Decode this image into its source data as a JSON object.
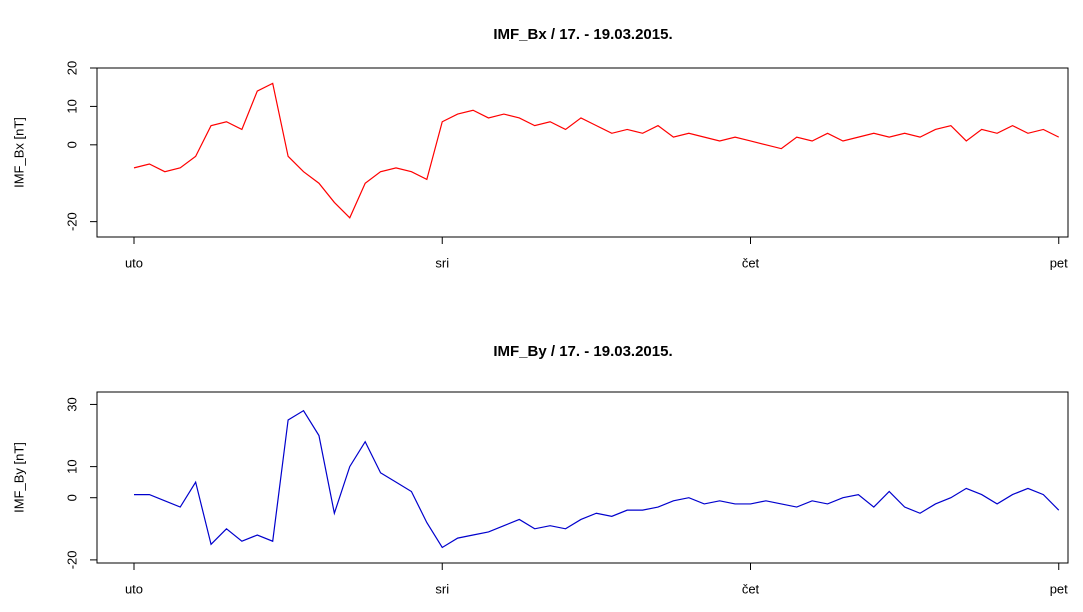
{
  "chart_data": [
    {
      "type": "line",
      "title": "IMF_Bx / 17. - 19.03.2015.",
      "y_label": "IMF_Bx [nT]",
      "x": [
        0,
        0.05,
        0.1,
        0.15,
        0.2,
        0.25,
        0.3,
        0.35,
        0.4,
        0.45,
        0.5,
        0.55,
        0.6,
        0.65,
        0.7,
        0.75,
        0.8,
        0.85,
        0.9,
        0.95,
        1,
        1.05,
        1.1,
        1.15,
        1.2,
        1.25,
        1.3,
        1.35,
        1.4,
        1.45,
        1.5,
        1.55,
        1.6,
        1.65,
        1.7,
        1.75,
        1.8,
        1.85,
        1.9,
        1.95,
        2,
        2.05,
        2.1,
        2.15,
        2.2,
        2.25,
        2.3,
        2.35,
        2.4,
        2.45,
        2.5,
        2.55,
        2.6,
        2.65,
        2.7,
        2.75,
        2.8,
        2.85,
        2.9,
        2.95,
        3
      ],
      "series": [
        {
          "name": "IMF_Bx",
          "color": "#ff0000",
          "values": [
            -6,
            -5,
            -7,
            -6,
            -3,
            5,
            6,
            4,
            14,
            16,
            -3,
            -7,
            -10,
            -15,
            -19,
            -10,
            -7,
            -6,
            -7,
            -9,
            6,
            8,
            9,
            7,
            8,
            7,
            5,
            6,
            4,
            7,
            5,
            3,
            4,
            3,
            5,
            2,
            3,
            2,
            1,
            2,
            1,
            0,
            -1,
            2,
            1,
            3,
            1,
            2,
            3,
            2,
            3,
            2,
            4,
            5,
            1,
            4,
            3,
            5,
            3,
            4,
            2
          ]
        }
      ],
      "xlim": [
        -0.12,
        3.03
      ],
      "ylim": [
        -24,
        20
      ],
      "xticks": [
        {
          "value": 0,
          "label": "uto"
        },
        {
          "value": 1,
          "label": "sri"
        },
        {
          "value": 2,
          "label": "čet"
        },
        {
          "value": 3,
          "label": "pet"
        }
      ],
      "yticks": [
        -20,
        0,
        10,
        20
      ]
    },
    {
      "type": "line",
      "title": "IMF_By / 17. - 19.03.2015.",
      "y_label": "IMF_By [nT]",
      "x": [
        0,
        0.05,
        0.1,
        0.15,
        0.2,
        0.25,
        0.3,
        0.35,
        0.4,
        0.45,
        0.5,
        0.55,
        0.6,
        0.65,
        0.7,
        0.75,
        0.8,
        0.85,
        0.9,
        0.95,
        1,
        1.05,
        1.1,
        1.15,
        1.2,
        1.25,
        1.3,
        1.35,
        1.4,
        1.45,
        1.5,
        1.55,
        1.6,
        1.65,
        1.7,
        1.75,
        1.8,
        1.85,
        1.9,
        1.95,
        2,
        2.05,
        2.1,
        2.15,
        2.2,
        2.25,
        2.3,
        2.35,
        2.4,
        2.45,
        2.5,
        2.55,
        2.6,
        2.65,
        2.7,
        2.75,
        2.8,
        2.85,
        2.9,
        2.95,
        3
      ],
      "series": [
        {
          "name": "IMF_By",
          "color": "#0000cd",
          "values": [
            1,
            1,
            -1,
            -3,
            5,
            -15,
            -10,
            -14,
            -12,
            -14,
            25,
            28,
            20,
            -5,
            10,
            18,
            8,
            5,
            2,
            -8,
            -16,
            -13,
            -12,
            -11,
            -9,
            -7,
            -10,
            -9,
            -10,
            -7,
            -5,
            -6,
            -4,
            -4,
            -3,
            -1,
            0,
            -2,
            -1,
            -2,
            -2,
            -1,
            -2,
            -3,
            -1,
            -2,
            0,
            1,
            -3,
            2,
            -3,
            -5,
            -2,
            0,
            3,
            1,
            -2,
            1,
            3,
            1,
            -4
          ]
        }
      ],
      "xlim": [
        -0.12,
        3.03
      ],
      "ylim": [
        -21,
        34
      ],
      "xticks": [
        {
          "value": 0,
          "label": "uto"
        },
        {
          "value": 1,
          "label": "sri"
        },
        {
          "value": 2,
          "label": "čet"
        },
        {
          "value": 3,
          "label": "pet"
        }
      ],
      "yticks": [
        -20,
        0,
        10,
        30
      ]
    }
  ]
}
